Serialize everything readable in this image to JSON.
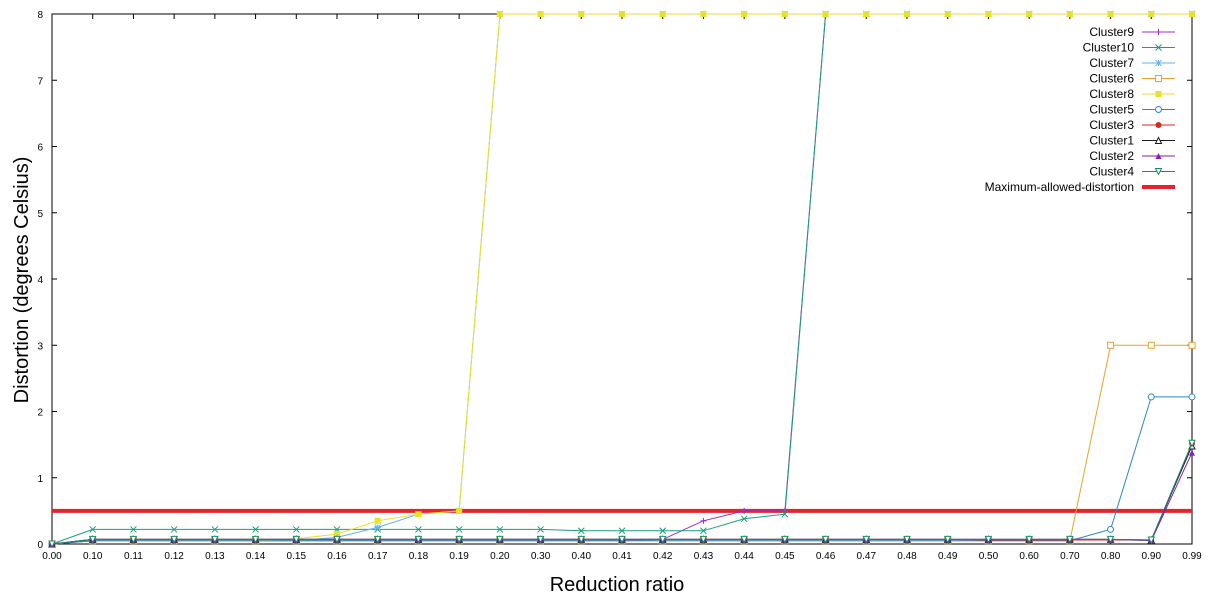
{
  "chart_data": {
    "type": "line",
    "title": "",
    "xlabel": "Reduction ratio",
    "ylabel": "Distortion (degrees Celsius)",
    "x_ticks": [
      "0.00",
      "0.10",
      "0.11",
      "0.12",
      "0.13",
      "0.14",
      "0.15",
      "0.16",
      "0.17",
      "0.18",
      "0.19",
      "0.20",
      "0.30",
      "0.40",
      "0.41",
      "0.42",
      "0.43",
      "0.44",
      "0.45",
      "0.46",
      "0.47",
      "0.48",
      "0.49",
      "0.50",
      "0.60",
      "0.70",
      "0.80",
      "0.90",
      "0.99"
    ],
    "ylim": [
      0,
      8
    ],
    "y_ticks": [
      "0",
      "1",
      "2",
      "3",
      "4",
      "5",
      "6",
      "7",
      "8"
    ],
    "grid": false,
    "legend_position": "top-right",
    "threshold": {
      "name": "Maximum-allowed-distortion",
      "value": 0.5,
      "color": "#e8222a"
    },
    "series": [
      {
        "name": "Cluster9",
        "color": "#9a2bcf",
        "marker": "plus",
        "values": [
          0,
          0.05,
          0.05,
          0.05,
          0.05,
          0.05,
          0.05,
          0.05,
          0.05,
          0.05,
          0.05,
          0.05,
          0.05,
          0.05,
          0.05,
          0.07,
          0.35,
          0.5,
          0.5,
          8,
          8,
          8,
          8,
          8,
          8,
          8,
          8,
          8,
          8
        ]
      },
      {
        "name": "Cluster10",
        "color": "#1a9e7a",
        "marker": "x",
        "values": [
          0,
          0.22,
          0.22,
          0.22,
          0.22,
          0.22,
          0.22,
          0.22,
          0.22,
          0.22,
          0.22,
          0.22,
          0.22,
          0.2,
          0.2,
          0.2,
          0.2,
          0.38,
          0.45,
          8,
          8,
          8,
          8,
          8,
          8,
          8,
          8,
          8,
          8
        ]
      },
      {
        "name": "Cluster7",
        "color": "#66b3e8",
        "marker": "star",
        "values": [
          0,
          0.05,
          0.05,
          0.05,
          0.05,
          0.05,
          0.05,
          0.1,
          0.25,
          0.45,
          0.5,
          8,
          8,
          8,
          8,
          8,
          8,
          8,
          8,
          8,
          8,
          8,
          8,
          8,
          8,
          8,
          8,
          8,
          8
        ]
      },
      {
        "name": "Cluster6",
        "color": "#e8a22a",
        "marker": "square-open",
        "values": [
          0,
          0.05,
          0.05,
          0.05,
          0.05,
          0.05,
          0.05,
          0.05,
          0.05,
          0.05,
          0.05,
          0.05,
          0.05,
          0.05,
          0.05,
          0.05,
          0.05,
          0.05,
          0.05,
          0.05,
          0.05,
          0.05,
          0.05,
          0.05,
          0.05,
          0.05,
          3,
          3,
          3
        ]
      },
      {
        "name": "Cluster8",
        "color": "#e6e22a",
        "marker": "square",
        "values": [
          0,
          0.05,
          0.05,
          0.05,
          0.05,
          0.05,
          0.08,
          0.15,
          0.35,
          0.45,
          0.5,
          8,
          8,
          8,
          8,
          8,
          8,
          8,
          8,
          8,
          8,
          8,
          8,
          8,
          8,
          8,
          8,
          8,
          8
        ]
      },
      {
        "name": "Cluster5",
        "color": "#2a86c6",
        "marker": "circle-open",
        "values": [
          0,
          0.05,
          0.05,
          0.05,
          0.05,
          0.05,
          0.05,
          0.05,
          0.05,
          0.05,
          0.05,
          0.05,
          0.05,
          0.05,
          0.05,
          0.05,
          0.05,
          0.05,
          0.05,
          0.05,
          0.05,
          0.05,
          0.05,
          0.05,
          0.05,
          0.05,
          0.22,
          2.22,
          2.22
        ]
      },
      {
        "name": "Cluster3",
        "color": "#d9281e",
        "marker": "circle",
        "values": [
          0,
          0.07,
          0.07,
          0.07,
          0.07,
          0.07,
          0.07,
          0.07,
          0.07,
          0.07,
          0.07,
          0.07,
          0.07,
          0.07,
          0.07,
          0.07,
          0.07,
          0.07,
          0.07,
          0.07,
          0.07,
          0.07,
          0.07,
          0.06,
          0.06,
          0.06,
          0.06,
          0.06,
          1.52
        ]
      },
      {
        "name": "Cluster1",
        "color": "#1a1a1a",
        "marker": "triangle-open",
        "values": [
          0,
          0.07,
          0.07,
          0.07,
          0.07,
          0.07,
          0.07,
          0.07,
          0.07,
          0.07,
          0.07,
          0.07,
          0.07,
          0.07,
          0.07,
          0.07,
          0.07,
          0.07,
          0.07,
          0.07,
          0.07,
          0.07,
          0.07,
          0.07,
          0.07,
          0.07,
          0.07,
          0.06,
          1.48
        ]
      },
      {
        "name": "Cluster2",
        "color": "#8a1ab8",
        "marker": "triangle",
        "values": [
          0,
          0.07,
          0.07,
          0.07,
          0.07,
          0.07,
          0.07,
          0.07,
          0.07,
          0.07,
          0.07,
          0.07,
          0.07,
          0.07,
          0.07,
          0.07,
          0.07,
          0.07,
          0.07,
          0.07,
          0.07,
          0.07,
          0.07,
          0.07,
          0.07,
          0.07,
          0.07,
          0.05,
          1.38
        ]
      },
      {
        "name": "Cluster4",
        "color": "#1a8a6a",
        "marker": "triangle-down",
        "values": [
          0,
          0.07,
          0.07,
          0.07,
          0.07,
          0.07,
          0.07,
          0.07,
          0.07,
          0.07,
          0.07,
          0.07,
          0.07,
          0.07,
          0.07,
          0.07,
          0.07,
          0.07,
          0.07,
          0.07,
          0.07,
          0.07,
          0.07,
          0.07,
          0.07,
          0.07,
          0.07,
          0.06,
          1.52
        ]
      }
    ]
  }
}
